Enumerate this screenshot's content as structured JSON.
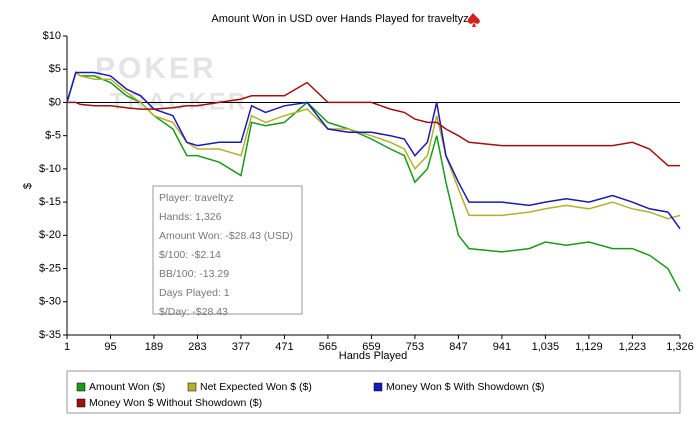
{
  "chart_data": {
    "type": "line",
    "title": "Amount Won in USD over Hands Played for traveltyz",
    "xlabel": "Hands Played",
    "ylabel": "$",
    "watermark": [
      "POKER",
      "TRACKER"
    ],
    "annotations": [
      "Player: traveltyz",
      "Hands: 1,326",
      "Amount Won: -$28.43 (USD)",
      "$/100: -$2.14",
      "BB/100: -13.29",
      "Days Played: 1",
      "$/Day: -$28.43"
    ],
    "x": [
      1,
      20,
      30,
      60,
      95,
      130,
      160,
      189,
      230,
      260,
      283,
      330,
      377,
      400,
      430,
      471,
      520,
      565,
      610,
      659,
      700,
      730,
      753,
      780,
      800,
      820,
      847,
      870,
      941,
      1000,
      1035,
      1080,
      1129,
      1180,
      1223,
      1260,
      1300,
      1326
    ],
    "series": [
      {
        "name": "Amount Won ($)",
        "color": "#1a9a1a",
        "values": [
          0,
          4.5,
          4,
          4,
          3,
          1,
          0,
          -2,
          -4,
          -8,
          -8,
          -9,
          -11,
          -3,
          -3.5,
          -3,
          0,
          -3,
          -4,
          -5.5,
          -7,
          -8,
          -12,
          -10,
          -5,
          -12,
          -20,
          -22,
          -22.5,
          -22,
          -21,
          -21.5,
          -21,
          -22,
          -22,
          -23,
          -25,
          -28.43
        ]
      },
      {
        "name": "Net Expected Won $ ($)",
        "color": "#b5b02a",
        "values": [
          0,
          4.5,
          4,
          3.5,
          3.5,
          1.5,
          0,
          -2,
          -3,
          -6,
          -7,
          -7,
          -8,
          -2,
          -3,
          -2,
          -1,
          -4,
          -4,
          -5,
          -6,
          -7,
          -10,
          -8,
          -2,
          -8,
          -13,
          -17,
          -17,
          -16.5,
          -16,
          -15.5,
          -16,
          -15,
          -16,
          -16.5,
          -17.5,
          -17
        ]
      },
      {
        "name": "Money Won $ With Showdown ($)",
        "color": "#1a1ab8",
        "values": [
          0,
          4.5,
          4.5,
          4.5,
          4,
          2,
          1,
          -1,
          -2,
          -6,
          -6.5,
          -6,
          -6,
          -0.5,
          -1.5,
          -0.5,
          0,
          -4,
          -4.5,
          -4.5,
          -5,
          -5.5,
          -8,
          -6,
          0,
          -8,
          -12,
          -15,
          -15,
          -15.5,
          -15,
          -14.5,
          -15,
          -14,
          -15,
          -16,
          -16.5,
          -19
        ]
      },
      {
        "name": "Money Won $ Without Showdown ($)",
        "color": "#a01010",
        "values": [
          0,
          0,
          -0.3,
          -0.5,
          -0.5,
          -0.8,
          -1,
          -1,
          -0.8,
          -0.5,
          -0.5,
          0,
          0.5,
          1,
          1,
          1,
          3,
          0,
          0,
          0,
          -1,
          -1.5,
          -2.5,
          -3,
          -3,
          -4,
          -5,
          -6,
          -6.5,
          -6.5,
          -6.5,
          -6.5,
          -6.5,
          -6.5,
          -6,
          -7,
          -9.5,
          -9.5
        ]
      }
    ],
    "xlim": [
      1,
      1326
    ],
    "xticks": [
      1,
      95,
      189,
      283,
      377,
      471,
      565,
      659,
      753,
      847,
      941,
      {
        "value": 1035,
        "label": "1,035"
      },
      {
        "value": 1129,
        "label": "1,129"
      },
      {
        "value": 1223,
        "label": "1,223"
      },
      {
        "value": 1326,
        "label": "1,326"
      }
    ],
    "ylim": [
      -35,
      10
    ],
    "yticks": [
      {
        "value": 10,
        "label": "$10"
      },
      {
        "value": 5,
        "label": "$5"
      },
      {
        "value": 0,
        "label": "$0"
      },
      {
        "value": -5,
        "label": "$-5"
      },
      {
        "value": -10,
        "label": "$-10"
      },
      {
        "value": -15,
        "label": "$-15"
      },
      {
        "value": -20,
        "label": "$-20"
      },
      {
        "value": -25,
        "label": "$-25"
      },
      {
        "value": -30,
        "label": "$-30"
      },
      {
        "value": -35,
        "label": "$-35"
      }
    ],
    "legend": "bottom"
  }
}
